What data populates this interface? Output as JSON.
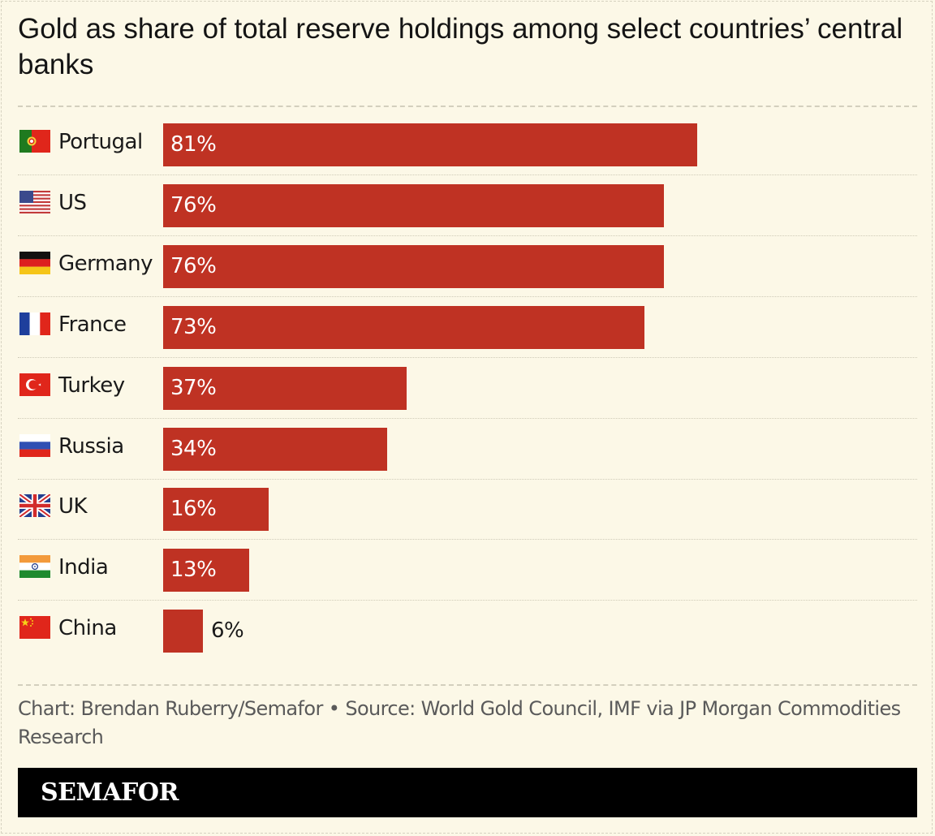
{
  "title": "Gold as share of total reserve holdings among select countries’ central banks",
  "source": "Chart: Brendan Ruberry/Semafor • Source: World Gold Council, IMF via JP Morgan Commodities Research",
  "brand": "SEMAFOR",
  "colors": {
    "bar": "#bf3223",
    "background": "#fcf8e7",
    "footer": "#000000"
  },
  "chart_data": {
    "type": "bar",
    "orientation": "horizontal",
    "title": "Gold as share of total reserve holdings among select countries’ central banks",
    "unit": "%",
    "xlim": [
      0,
      100
    ],
    "grid": false,
    "categories": [
      "Portugal",
      "US",
      "Germany",
      "France",
      "Turkey",
      "Russia",
      "UK",
      "India",
      "China"
    ],
    "values": [
      81,
      76,
      76,
      73,
      37,
      34,
      16,
      13,
      6
    ],
    "labels": [
      "81%",
      "76%",
      "76%",
      "73%",
      "37%",
      "34%",
      "16%",
      "13%",
      "6%"
    ],
    "flags": [
      "portugal-flag-icon",
      "us-flag-icon",
      "germany-flag-icon",
      "france-flag-icon",
      "turkey-flag-icon",
      "russia-flag-icon",
      "uk-flag-icon",
      "india-flag-icon",
      "china-flag-icon"
    ]
  }
}
